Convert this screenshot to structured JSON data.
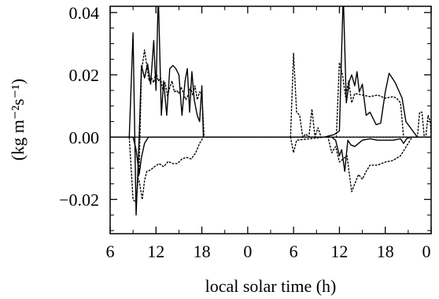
{
  "chart_data": {
    "type": "line",
    "title": "",
    "xlabel": "local solar time (h)",
    "ylabel": "(kg m⁻²s⁻¹)",
    "xlim": [
      0,
      42
    ],
    "ylim": [
      -0.031,
      0.042
    ],
    "x_ticks": [
      0,
      6,
      12,
      18,
      24,
      30,
      36,
      42
    ],
    "x_tick_labels": [
      "6",
      "12",
      "18",
      "0",
      "6",
      "12",
      "18",
      "0"
    ],
    "y_ticks": [
      -0.02,
      0.0,
      0.02,
      0.04
    ],
    "y_tick_labels": [
      "−0.02",
      "0.00",
      "0.02",
      "0.04"
    ],
    "grid": false,
    "legend": "none",
    "zero_line": true,
    "series": [
      {
        "style": "solid",
        "x": [
          0,
          2.5,
          3.0,
          3.4,
          3.8,
          4.1,
          4.5,
          4.9,
          5.3,
          5.7,
          6.0,
          6.3,
          6.7,
          7.0,
          7.4,
          7.8,
          8.2,
          8.6,
          9.0,
          9.4,
          9.8,
          10.1,
          10.4,
          10.7,
          11.0,
          11.4,
          11.7,
          12.0,
          12.2,
          12.6,
          28.0,
          29.3,
          30.0,
          30.5,
          30.9,
          31.3,
          31.6,
          32.0,
          32.3,
          32.6,
          33.0,
          33.5,
          34.0,
          34.8,
          35.4,
          36.0,
          36.5,
          37.3,
          38.2,
          38.7,
          40.2
        ],
        "y": [
          0,
          0,
          0.0335,
          -0.025,
          0.0,
          0.023,
          0.019,
          0.0235,
          0.017,
          0.031,
          0.015,
          0.046,
          0.007,
          0.018,
          0.007,
          0.022,
          0.023,
          0.022,
          0.02,
          0.007,
          0.018,
          0.022,
          0.008,
          0.021,
          0.012,
          0.007,
          0.005,
          0.0165,
          0.0,
          0.0,
          0.0,
          0.0008,
          0.002,
          0.046,
          0.011,
          0.018,
          0.02,
          0.0165,
          0.021,
          0.0145,
          0.017,
          0.007,
          0.008,
          0.004,
          0.0045,
          0.0145,
          0.0205,
          0.0175,
          0.0125,
          0.005,
          0.0
        ]
      },
      {
        "style": "dotted",
        "x": [
          0,
          2.5,
          3.0,
          3.4,
          3.8,
          4.1,
          4.5,
          4.8,
          5.1,
          5.4,
          5.7,
          6.0,
          6.3,
          6.6,
          6.9,
          7.2,
          7.5,
          7.8,
          8.1,
          8.4,
          8.7,
          9.0,
          9.3,
          9.6,
          9.9,
          10.2,
          10.5,
          10.8,
          11.1,
          11.4,
          11.7,
          12.0,
          12.3,
          12.6,
          22.5,
          23.0,
          23.5,
          24.0,
          24.4,
          24.8,
          25.2,
          25.6,
          26.0,
          26.3,
          26.6,
          27.2,
          27.6,
          28.0,
          28.5,
          29.0,
          29.4,
          29.8,
          30.1,
          30.4,
          30.7,
          31.1,
          31.5,
          32.0,
          32.5,
          33.0,
          33.5,
          34.0,
          35.0,
          36.0,
          37.0,
          38.0,
          38.7,
          39.5,
          40.3,
          40.6,
          41.0,
          41.3,
          41.6,
          42.0
        ],
        "y": [
          0,
          0,
          -0.02,
          -0.021,
          -0.01,
          0.021,
          0.028,
          0.023,
          0.018,
          0.019,
          0.0175,
          0.021,
          0.018,
          0.019,
          0.015,
          0.0175,
          0.013,
          0.016,
          0.018,
          0.0145,
          0.015,
          0.014,
          0.016,
          0.014,
          0.012,
          0.0135,
          0.016,
          0.0135,
          0.0165,
          0.012,
          0.0145,
          0.0135,
          0.0,
          0.0,
          0.0,
          0.0,
          0.0,
          0.0,
          0.0,
          0.0,
          0.0,
          0.0,
          0.0,
          0.0,
          0.0,
          0.0,
          0.0,
          0.0,
          0.0,
          0.0,
          0.0,
          0.0,
          0.0,
          0.0,
          0.0,
          0.0,
          0.0,
          0.0,
          0.0,
          0.0,
          0.0,
          0.0,
          0.0,
          0.0,
          0.0,
          0.0,
          0.0,
          0.0,
          0.0,
          0.0,
          0.0,
          0.0,
          0.0,
          0.0
        ]
      },
      {
        "style": "solid",
        "x": [
          0,
          3.0,
          3.4,
          3.8,
          4.1,
          4.5,
          5.0,
          6.0,
          7.0,
          8.0,
          9.0,
          10.0,
          11.0,
          12.0,
          12.6,
          29.0,
          29.5,
          30.0,
          30.3,
          30.7,
          31.1,
          31.5,
          32.0,
          33.0,
          34.0,
          35.0,
          36.0,
          37.0,
          38.0,
          38.4,
          38.8,
          39.3,
          40.0,
          42.0
        ],
        "y": [
          0,
          0,
          -0.004,
          -0.012,
          -0.0065,
          -0.002,
          0.0,
          0.0,
          0.0,
          0.0,
          0.0,
          0.0,
          0.0,
          0.0,
          0.0,
          0.0,
          -0.001,
          -0.006,
          -0.004,
          -0.011,
          -0.001,
          -0.0025,
          -0.003,
          -0.001,
          -0.0005,
          -0.001,
          -0.001,
          -0.001,
          -0.0005,
          -0.002,
          -0.0005,
          0.0,
          0.0,
          0.0
        ]
      },
      {
        "style": "dotted",
        "x": [
          3.8,
          4.2,
          4.5,
          4.8,
          5.3,
          5.8,
          6.4,
          7.0,
          7.6,
          8.2,
          8.8,
          9.4,
          10.0,
          10.6,
          11.2,
          11.7,
          12.2
        ],
        "y": [
          -0.014,
          -0.02,
          -0.014,
          -0.011,
          -0.0105,
          -0.0095,
          -0.0085,
          -0.0095,
          -0.0078,
          -0.0085,
          -0.0085,
          -0.007,
          -0.0065,
          -0.007,
          -0.005,
          -0.002,
          0.0
        ]
      },
      {
        "style": "dotted",
        "x": [
          23.6,
          24.0,
          24.4,
          24.8,
          25.2,
          25.6,
          26.0,
          26.4,
          26.8,
          27.2,
          27.6,
          28.0
        ],
        "y": [
          0.0,
          0.027,
          0.008,
          0.007,
          0.0,
          0.001,
          0.0,
          0.009,
          0.0,
          0.003,
          0.0,
          0.0
        ]
      },
      {
        "style": "dotted",
        "x": [
          23.6,
          24.0,
          24.4,
          28.0,
          28.5,
          29.0,
          29.5,
          30.0,
          31.0,
          31.6,
          32.0,
          32.5,
          33.0,
          33.5,
          34.0,
          35.0,
          36.0,
          37.0,
          38.0,
          38.5,
          39.0,
          39.5
        ],
        "y": [
          0.0,
          -0.005,
          -0.001,
          0.0,
          0.0,
          -0.005,
          -0.003,
          -0.008,
          -0.006,
          -0.0175,
          -0.015,
          -0.012,
          -0.0135,
          -0.011,
          -0.009,
          -0.009,
          -0.008,
          -0.0075,
          -0.006,
          -0.004,
          -0.002,
          0.0
        ]
      },
      {
        "style": "dotted",
        "x": [
          29.6,
          30.0,
          30.4,
          30.8,
          31.2,
          31.6,
          32.0,
          33.0,
          34.0,
          35.0,
          36.0,
          37.0,
          37.5,
          38.0,
          38.4
        ],
        "y": [
          0.0,
          0.024,
          0.02,
          0.013,
          0.018,
          0.011,
          0.014,
          0.0135,
          0.013,
          0.0135,
          0.0125,
          0.013,
          0.0125,
          0.011,
          0.0
        ]
      },
      {
        "style": "dotted",
        "x": [
          40.2,
          40.5,
          40.8,
          41.1,
          41.3,
          41.6,
          41.9,
          42.0
        ],
        "y": [
          0.0,
          0.008,
          0.008,
          0.0,
          0.0,
          0.007,
          0.005,
          0.0
        ]
      }
    ]
  }
}
